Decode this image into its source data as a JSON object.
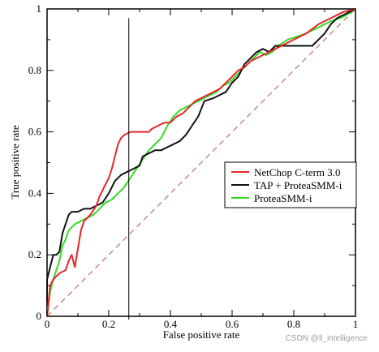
{
  "chart_data": {
    "type": "line",
    "title": "",
    "xlabel": "False positive rate",
    "ylabel": "True positive rate",
    "xlim": [
      0,
      1
    ],
    "ylim": [
      0,
      1
    ],
    "x_ticks": [
      "0",
      "0.2",
      "0.4",
      "0.6",
      "0.8",
      "1"
    ],
    "y_ticks": [
      "0",
      "0.2",
      "0.4",
      "0.6",
      "0.8",
      "1"
    ],
    "grid": false,
    "legend_position": "right",
    "vertical_marker_x": 0.265,
    "series": [
      {
        "name": "NetChop C-term 3.0",
        "color": "#e8262a",
        "points": [
          [
            0,
            0
          ],
          [
            0.01,
            0.1
          ],
          [
            0.02,
            0.12
          ],
          [
            0.04,
            0.14
          ],
          [
            0.06,
            0.15
          ],
          [
            0.07,
            0.18
          ],
          [
            0.08,
            0.2
          ],
          [
            0.09,
            0.16
          ],
          [
            0.1,
            0.22
          ],
          [
            0.11,
            0.28
          ],
          [
            0.12,
            0.31
          ],
          [
            0.14,
            0.33
          ],
          [
            0.16,
            0.36
          ],
          [
            0.17,
            0.39
          ],
          [
            0.18,
            0.41
          ],
          [
            0.19,
            0.43
          ],
          [
            0.2,
            0.45
          ],
          [
            0.21,
            0.48
          ],
          [
            0.22,
            0.52
          ],
          [
            0.23,
            0.56
          ],
          [
            0.24,
            0.58
          ],
          [
            0.25,
            0.59
          ],
          [
            0.27,
            0.6
          ],
          [
            0.3,
            0.6
          ],
          [
            0.33,
            0.6
          ],
          [
            0.34,
            0.61
          ],
          [
            0.36,
            0.62
          ],
          [
            0.38,
            0.63
          ],
          [
            0.4,
            0.63
          ],
          [
            0.42,
            0.65
          ],
          [
            0.44,
            0.66
          ],
          [
            0.46,
            0.68
          ],
          [
            0.48,
            0.7
          ],
          [
            0.5,
            0.71
          ],
          [
            0.52,
            0.72
          ],
          [
            0.54,
            0.73
          ],
          [
            0.56,
            0.74
          ],
          [
            0.58,
            0.76
          ],
          [
            0.6,
            0.78
          ],
          [
            0.62,
            0.8
          ],
          [
            0.64,
            0.81
          ],
          [
            0.66,
            0.83
          ],
          [
            0.68,
            0.84
          ],
          [
            0.7,
            0.85
          ],
          [
            0.72,
            0.86
          ],
          [
            0.76,
            0.88
          ],
          [
            0.8,
            0.9
          ],
          [
            0.84,
            0.92
          ],
          [
            0.88,
            0.95
          ],
          [
            0.92,
            0.97
          ],
          [
            0.96,
            0.99
          ],
          [
            1,
            1
          ]
        ]
      },
      {
        "name": "TAP + ProteaSMM-i",
        "color": "#111111",
        "points": [
          [
            0,
            0
          ],
          [
            0.0,
            0.12
          ],
          [
            0.01,
            0.16
          ],
          [
            0.02,
            0.2
          ],
          [
            0.03,
            0.2
          ],
          [
            0.04,
            0.21
          ],
          [
            0.05,
            0.27
          ],
          [
            0.06,
            0.3
          ],
          [
            0.07,
            0.33
          ],
          [
            0.08,
            0.34
          ],
          [
            0.1,
            0.34
          ],
          [
            0.12,
            0.35
          ],
          [
            0.14,
            0.35
          ],
          [
            0.16,
            0.36
          ],
          [
            0.18,
            0.37
          ],
          [
            0.2,
            0.4
          ],
          [
            0.22,
            0.44
          ],
          [
            0.24,
            0.46
          ],
          [
            0.26,
            0.47
          ],
          [
            0.28,
            0.48
          ],
          [
            0.3,
            0.49
          ],
          [
            0.31,
            0.52
          ],
          [
            0.33,
            0.53
          ],
          [
            0.35,
            0.54
          ],
          [
            0.37,
            0.54
          ],
          [
            0.39,
            0.55
          ],
          [
            0.41,
            0.56
          ],
          [
            0.43,
            0.57
          ],
          [
            0.45,
            0.59
          ],
          [
            0.47,
            0.62
          ],
          [
            0.49,
            0.65
          ],
          [
            0.51,
            0.7
          ],
          [
            0.54,
            0.71
          ],
          [
            0.56,
            0.72
          ],
          [
            0.58,
            0.73
          ],
          [
            0.6,
            0.76
          ],
          [
            0.62,
            0.78
          ],
          [
            0.64,
            0.82
          ],
          [
            0.66,
            0.84
          ],
          [
            0.68,
            0.86
          ],
          [
            0.7,
            0.87
          ],
          [
            0.72,
            0.86
          ],
          [
            0.74,
            0.88
          ],
          [
            0.78,
            0.88
          ],
          [
            0.82,
            0.88
          ],
          [
            0.86,
            0.88
          ],
          [
            0.88,
            0.9
          ],
          [
            0.9,
            0.92
          ],
          [
            0.92,
            0.95
          ],
          [
            0.94,
            0.97
          ],
          [
            0.96,
            0.98
          ],
          [
            0.98,
            0.99
          ],
          [
            1,
            1
          ]
        ]
      },
      {
        "name": "ProteaSMM-i",
        "color": "#33dd22",
        "points": [
          [
            0,
            0
          ],
          [
            0.01,
            0.08
          ],
          [
            0.02,
            0.12
          ],
          [
            0.04,
            0.18
          ],
          [
            0.05,
            0.23
          ],
          [
            0.06,
            0.25
          ],
          [
            0.07,
            0.28
          ],
          [
            0.09,
            0.3
          ],
          [
            0.11,
            0.31
          ],
          [
            0.13,
            0.32
          ],
          [
            0.15,
            0.33
          ],
          [
            0.17,
            0.35
          ],
          [
            0.19,
            0.37
          ],
          [
            0.21,
            0.38
          ],
          [
            0.23,
            0.4
          ],
          [
            0.25,
            0.42
          ],
          [
            0.27,
            0.45
          ],
          [
            0.29,
            0.48
          ],
          [
            0.31,
            0.51
          ],
          [
            0.33,
            0.54
          ],
          [
            0.35,
            0.56
          ],
          [
            0.37,
            0.58
          ],
          [
            0.39,
            0.62
          ],
          [
            0.41,
            0.65
          ],
          [
            0.43,
            0.67
          ],
          [
            0.45,
            0.68
          ],
          [
            0.47,
            0.69
          ],
          [
            0.49,
            0.7
          ],
          [
            0.51,
            0.71
          ],
          [
            0.53,
            0.72
          ],
          [
            0.55,
            0.73
          ],
          [
            0.57,
            0.75
          ],
          [
            0.59,
            0.76
          ],
          [
            0.61,
            0.78
          ],
          [
            0.63,
            0.8
          ],
          [
            0.65,
            0.82
          ],
          [
            0.67,
            0.84
          ],
          [
            0.69,
            0.86
          ],
          [
            0.71,
            0.85
          ],
          [
            0.73,
            0.86
          ],
          [
            0.75,
            0.88
          ],
          [
            0.78,
            0.9
          ],
          [
            0.81,
            0.91
          ],
          [
            0.84,
            0.92
          ],
          [
            0.88,
            0.94
          ],
          [
            0.92,
            0.96
          ],
          [
            0.95,
            0.97
          ],
          [
            0.97,
            0.98
          ],
          [
            1,
            1
          ]
        ]
      },
      {
        "name": "",
        "color": "#c9928a",
        "dashed": true,
        "points": [
          [
            0,
            0
          ],
          [
            1,
            1
          ]
        ]
      }
    ]
  },
  "watermark": "CSDN @ll_intelligence"
}
